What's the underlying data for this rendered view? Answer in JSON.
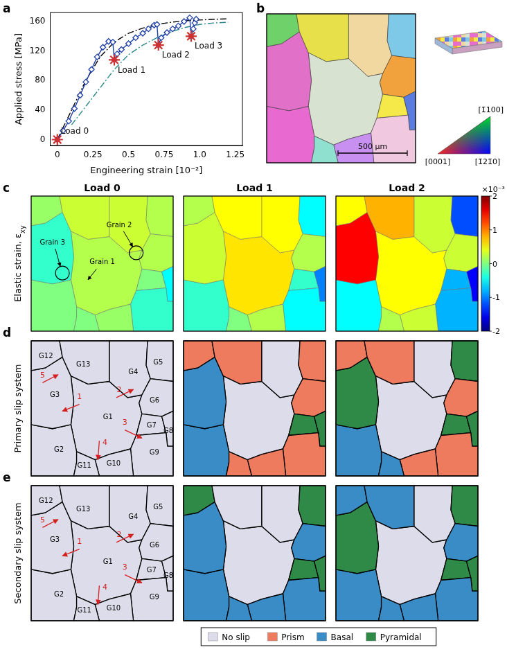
{
  "chart_data": {
    "type": "line",
    "panel_label": "a",
    "x_label": "Engineering strain [10⁻²]",
    "y_label": "Applied stress [MPa]",
    "xlim": [
      -0.05,
      1.3
    ],
    "xticks": [
      0,
      0.25,
      0.5,
      0.75,
      {
        "value": 1,
        "label": "1.0"
      },
      1.25
    ],
    "ylim": [
      -8,
      172
    ],
    "yticks": [
      0,
      40,
      80,
      120,
      160
    ],
    "grid": false,
    "series": [
      {
        "type": "line",
        "marker": "diamond",
        "line_style": "solid",
        "color": "#1f3fa8",
        "x": [
          0,
          0.04,
          0.08,
          0.12,
          0.16,
          0.2,
          0.24,
          0.28,
          0.32,
          0.36,
          0.39,
          0.4,
          0.42,
          0.45,
          0.5,
          0.55,
          0.6,
          0.64,
          0.68,
          0.7,
          0.71,
          0.73,
          0.77,
          0.81,
          0.85,
          0.89,
          0.93,
          0.94,
          0.955,
          0.965,
          0.975
        ],
        "values": [
          0,
          12,
          25,
          42,
          60,
          78,
          95,
          112,
          125,
          133,
          132,
          108,
          116,
          122,
          130,
          138,
          144,
          150,
          155,
          156,
          128,
          138,
          145,
          150,
          154,
          160,
          165,
          140,
          150,
          158,
          163
        ]
      },
      {
        "type": "line",
        "marker": "none",
        "line_style": "dashdot",
        "color": "#000000",
        "x": [
          0,
          0.1,
          0.2,
          0.3,
          0.4,
          0.5,
          0.6,
          0.7,
          0.8,
          0.9,
          1.0,
          1.1,
          1.2
        ],
        "values": [
          0,
          40,
          80,
          112,
          132,
          144,
          151,
          156,
          159,
          161,
          162,
          163,
          163.5
        ]
      },
      {
        "type": "line",
        "marker": "none",
        "line_style": "dashdot",
        "color": "#2a8a8a",
        "x": [
          0.1,
          0.2,
          0.3,
          0.4,
          0.5,
          0.6,
          0.7,
          0.8,
          0.9,
          1.0,
          1.1,
          1.2
        ],
        "values": [
          20,
          45,
          70,
          95,
          115,
          128,
          138,
          146,
          152,
          156,
          158,
          159
        ]
      },
      {
        "type": "scatter",
        "marker": "star",
        "line_style": "none",
        "color": "#d03030",
        "x": [
          0,
          0.4,
          0.71,
          0.94
        ],
        "values": [
          0,
          108,
          128,
          140
        ]
      }
    ],
    "annotations": [
      {
        "text": "Load 0",
        "x": 0,
        "y": 0
      },
      {
        "text": "Load 1",
        "x": 0.4,
        "y": 108
      },
      {
        "text": "Load 2",
        "x": 0.71,
        "y": 128
      },
      {
        "text": "Load 3",
        "x": 0.94,
        "y": 140
      }
    ]
  },
  "maps": {
    "grain_names": [
      "G1",
      "G2",
      "G3",
      "G4",
      "G5",
      "G6",
      "G7",
      "G8",
      "G9",
      "G10",
      "G11",
      "G12",
      "G13"
    ],
    "load_titles": [
      "Load 0",
      "Load 1",
      "Load 2"
    ],
    "b": {
      "panel_label": "b",
      "colors": [
        "#d8e2d0",
        "#e86ad0",
        "#e070c8",
        "#f0d8a0",
        "#7ec8e8",
        "#f2a23c",
        "#f5e94a",
        "#5a7be0",
        "#f0c8e0",
        "#c890f0",
        "#90e0d0",
        "#6fd16a",
        "#e8e04a"
      ],
      "scale_bar": "500 μm",
      "ipf_labels": {
        "top": "[1̄100]",
        "left": "[0001]",
        "right": "[1̄21̄0]"
      }
    },
    "c": {
      "panel_label": "c",
      "row_title": "Elastic strain, ε",
      "row_title_subscript": "xy",
      "colorbar": {
        "range": [
          -2,
          2
        ],
        "ticks": [
          2,
          1,
          0,
          -1,
          -2
        ],
        "multiplier": "×10⁻³"
      },
      "values": [
        [
          0.2,
          0,
          -0.3,
          0.3,
          0.2,
          0.2,
          0,
          -0.5,
          -0.3,
          0.1,
          0,
          0.1,
          0.3
        ],
        [
          0.6,
          -0.3,
          0.3,
          0.5,
          -0.5,
          0.2,
          -0.3,
          -1.0,
          -0.5,
          0.2,
          0,
          0.2,
          0.5
        ],
        [
          0.5,
          -0.5,
          1.5,
          0.3,
          -1.2,
          0.3,
          -0.8,
          -1.5,
          -0.8,
          0.3,
          0.2,
          0.5,
          0.8
        ]
      ],
      "callouts": [
        "Grain 1",
        "Grain 2",
        "Grain 3"
      ]
    },
    "d": {
      "panel_label": "d",
      "row_title": "Primary slip system",
      "values": [
        [
          "No slip",
          "No slip",
          "No slip",
          "No slip",
          "No slip",
          "No slip",
          "No slip",
          "No slip",
          "No slip",
          "No slip",
          "No slip",
          "No slip",
          "No slip"
        ],
        [
          "No slip",
          "Basal",
          "Basal",
          "No slip",
          "Prism",
          "Prism",
          "Pyramidal",
          "Pyramidal",
          "Prism",
          "Prism",
          "Prism",
          "Prism",
          "Prism"
        ],
        [
          "No slip",
          "Basal",
          "Pyramidal",
          "No slip",
          "Pyramidal",
          "Prism",
          "Pyramidal",
          "Pyramidal",
          "Prism",
          "Prism",
          "Basal",
          "Prism",
          "Prism"
        ]
      ]
    },
    "e": {
      "panel_label": "e",
      "row_title": "Secondary slip system",
      "values": [
        [
          "No slip",
          "No slip",
          "No slip",
          "No slip",
          "No slip",
          "No slip",
          "No slip",
          "No slip",
          "No slip",
          "No slip",
          "No slip",
          "No slip",
          "No slip"
        ],
        [
          "No slip",
          "Basal",
          "Basal",
          "No slip",
          "Pyramidal",
          "Basal",
          "Pyramidal",
          "Pyramidal",
          "Basal",
          "Basal",
          "Basal",
          "Pyramidal",
          "No slip"
        ],
        [
          "No slip",
          "Basal",
          "Pyramidal",
          "No slip",
          "Pyramidal",
          "Basal",
          "Pyramidal",
          "Pyramidal",
          "Basal",
          "Basal",
          "Basal",
          "Basal",
          "Basal"
        ]
      ]
    },
    "arrow_labels": [
      "1",
      "2",
      "3",
      "4",
      "5"
    ],
    "slip_types": [
      {
        "name": "No slip",
        "color": "#dcdcea"
      },
      {
        "name": "Prism",
        "color": "#ee7b5e"
      },
      {
        "name": "Basal",
        "color": "#3a8cc6"
      },
      {
        "name": "Pyramidal",
        "color": "#2f8a47"
      }
    ]
  }
}
